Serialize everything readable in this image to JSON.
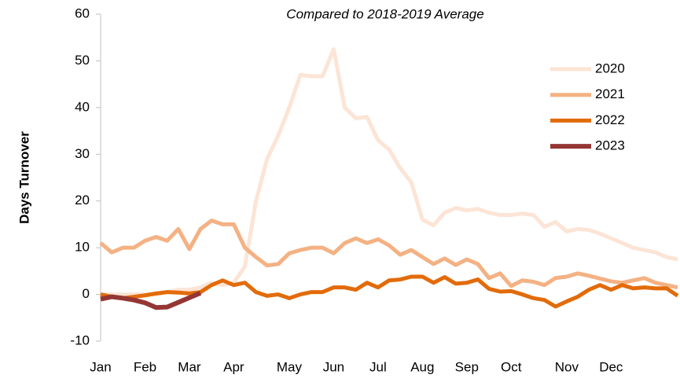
{
  "chart_data": {
    "type": "line",
    "title": "Compared to 2018-2019 Average",
    "y_label": "Days Turnover",
    "categories": [
      "Jan",
      null,
      null,
      null,
      "Feb",
      null,
      null,
      null,
      "Mar",
      null,
      null,
      null,
      "Apr",
      null,
      null,
      null,
      null,
      "May",
      null,
      null,
      null,
      "Jun",
      null,
      null,
      null,
      "Jul",
      null,
      null,
      null,
      "Aug",
      null,
      null,
      null,
      "Sep",
      null,
      null,
      null,
      "Oct",
      null,
      null,
      null,
      null,
      "Nov",
      null,
      null,
      null,
      "Dec",
      null,
      null,
      null,
      null,
      null,
      null
    ],
    "series": [
      {
        "name": "2020",
        "color": "#fce4d6",
        "width": 5,
        "values": [
          0,
          0,
          0,
          0,
          0,
          0,
          0.5,
          1,
          1,
          1.5,
          2.5,
          2,
          2.5,
          6,
          20,
          29,
          34,
          40,
          47,
          46.7,
          46.7,
          52.5,
          40,
          37.7,
          38,
          33,
          31,
          27,
          24,
          16,
          14.8,
          17.5,
          18.5,
          18,
          18.3,
          17.5,
          17,
          17,
          17.3,
          17,
          14.5,
          15.5,
          13.5,
          14,
          13.8,
          13,
          12,
          11,
          10,
          9.5,
          9,
          8,
          7.5
        ]
      },
      {
        "name": "2021",
        "color": "#f4b183",
        "width": 5,
        "values": [
          11,
          9,
          10,
          10,
          11.5,
          12.3,
          11.5,
          14,
          9.7,
          14,
          15.8,
          15,
          15,
          10,
          8,
          6.2,
          6.5,
          8.8,
          9.5,
          10,
          10,
          8.8,
          11,
          12,
          11,
          11.8,
          10.5,
          8.5,
          9.5,
          8,
          6.5,
          7.7,
          6.3,
          7.5,
          6.5,
          3.5,
          4.5,
          1.8,
          3,
          2.7,
          2,
          3.5,
          3.8,
          4.5,
          4,
          3.4,
          2.8,
          2.5,
          3,
          3.5,
          2.5,
          2,
          1.5
        ]
      },
      {
        "name": "2022",
        "color": "#e26b0a",
        "width": 5,
        "values": [
          0,
          -0.5,
          -0.8,
          -0.5,
          -0.2,
          0.2,
          0.5,
          0.4,
          0.2,
          0.5,
          2,
          3,
          2,
          2.5,
          0.5,
          -0.3,
          0,
          -0.8,
          0,
          0.5,
          0.5,
          1.5,
          1.5,
          1,
          2.5,
          1.5,
          3,
          3.2,
          3.8,
          3.8,
          2.5,
          3.7,
          2.3,
          2.5,
          3.2,
          1.2,
          0.6,
          0.7,
          0,
          -0.8,
          -1.2,
          -2.6,
          -1.5,
          -0.5,
          1,
          2,
          1,
          2,
          1.3,
          1.5,
          1.3,
          1.3,
          -0.3
        ]
      },
      {
        "name": "2023",
        "color": "#943634",
        "width": 6,
        "values": [
          -1,
          -0.5,
          -0.8,
          -1.2,
          -1.8,
          -2.8,
          -2.7,
          -1.7,
          -0.7,
          0.3,
          null,
          null,
          null,
          null,
          null,
          null,
          null,
          null,
          null,
          null,
          null,
          null,
          null,
          null,
          null,
          null,
          null,
          null,
          null,
          null,
          null,
          null,
          null,
          null,
          null,
          null,
          null,
          null,
          null,
          null,
          null,
          null,
          null,
          null,
          null,
          null,
          null,
          null,
          null,
          null,
          null,
          null,
          null
        ]
      }
    ],
    "ylim": [
      -10,
      60
    ],
    "yticks": [
      -10,
      0,
      10,
      20,
      30,
      40,
      50,
      60
    ],
    "legend": "upper right"
  }
}
